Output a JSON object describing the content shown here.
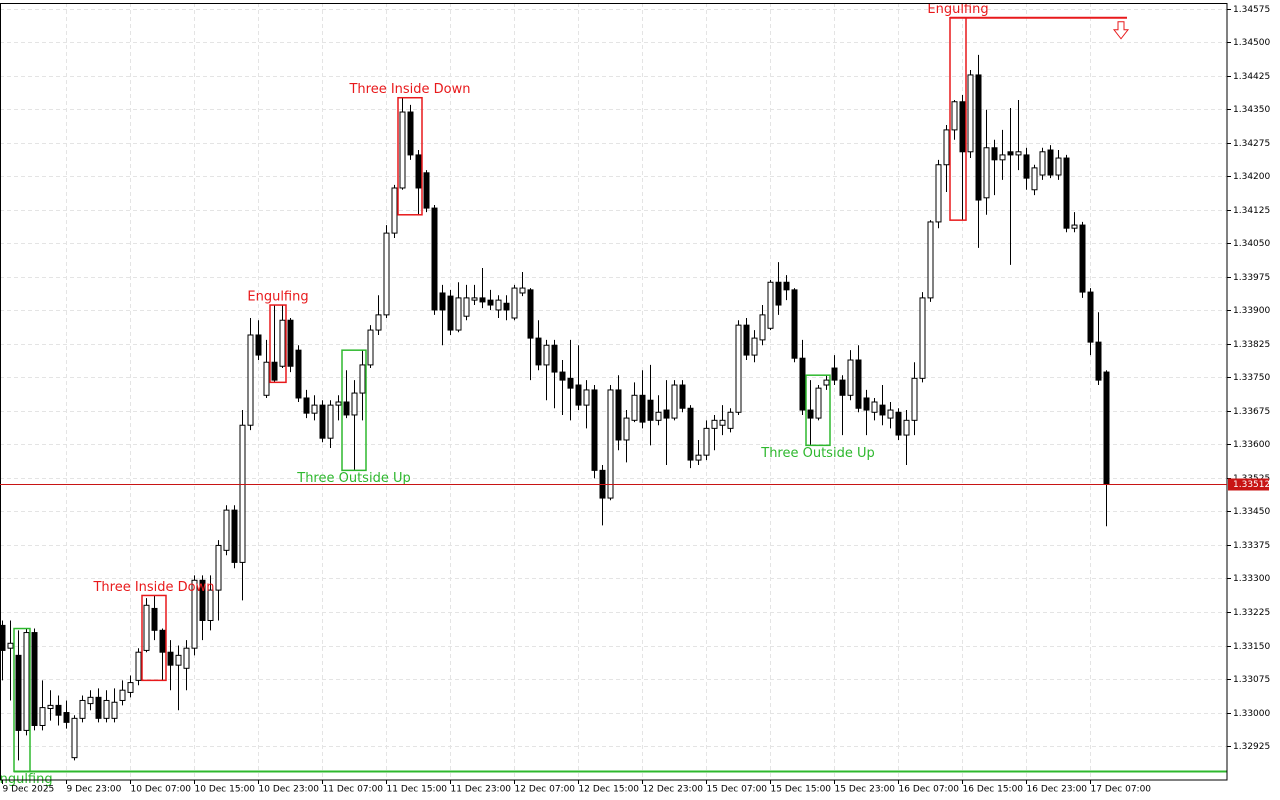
{
  "chart_data": {
    "type": "candlestick",
    "ylim": [
      1.32849,
      1.34588
    ],
    "yticks": [
      1.34575,
      {
        "value": 1.345,
        "label": "1.34500"
      },
      1.34425,
      {
        "value": 1.3435,
        "label": "1.34350"
      },
      1.34275,
      {
        "value": 1.342,
        "label": "1.34200"
      },
      1.34125,
      {
        "value": 1.3405,
        "label": "1.34050"
      },
      1.33975,
      {
        "value": 1.339,
        "label": "1.33900"
      },
      1.33825,
      {
        "value": 1.3375,
        "label": "1.33750"
      },
      1.33675,
      {
        "value": 1.336,
        "label": "1.33600"
      },
      1.33525,
      {
        "value": 1.3345,
        "label": "1.33450"
      },
      1.33375,
      {
        "value": 1.333,
        "label": "1.33300"
      },
      1.33225,
      {
        "value": 1.3315,
        "label": "1.33150"
      },
      1.33075,
      {
        "value": 1.33,
        "label": "1.33000"
      },
      1.32925
    ],
    "grid": true,
    "up_color": "#ffffff",
    "down_color": "#000000",
    "bullish_color": "#2eb82e",
    "bearish_color": "#e8191b",
    "current_price": 1.33512,
    "current_price_color": "#c81414",
    "categories": [
      "9 Dec 2025",
      null,
      null,
      null,
      null,
      null,
      null,
      null,
      "9 Dec 23:00",
      null,
      null,
      null,
      null,
      null,
      null,
      null,
      "10 Dec 07:00",
      null,
      null,
      null,
      null,
      null,
      null,
      null,
      "10 Dec 15:00",
      null,
      null,
      null,
      null,
      null,
      null,
      null,
      "10 Dec 23:00",
      null,
      null,
      null,
      null,
      null,
      null,
      null,
      "11 Dec 07:00",
      null,
      null,
      null,
      null,
      null,
      null,
      null,
      "11 Dec 15:00",
      null,
      null,
      null,
      null,
      null,
      null,
      null,
      "11 Dec 23:00",
      null,
      null,
      null,
      null,
      null,
      null,
      null,
      "12 Dec 07:00",
      null,
      null,
      null,
      null,
      null,
      null,
      null,
      "12 Dec 15:00",
      null,
      null,
      null,
      null,
      null,
      null,
      null,
      "12 Dec 23:00",
      null,
      null,
      null,
      null,
      null,
      null,
      null,
      "15 Dec 07:00",
      null,
      null,
      null,
      null,
      null,
      null,
      null,
      "15 Dec 15:00",
      null,
      null,
      null,
      null,
      null,
      null,
      null,
      "15 Dec 23:00",
      null,
      null,
      null,
      null,
      null,
      null,
      null,
      "16 Dec 07:00",
      null,
      null,
      null,
      null,
      null,
      null,
      null,
      "16 Dec 15:00",
      null,
      null,
      null,
      null,
      null,
      null,
      null,
      "16 Dec 23:00",
      null,
      null,
      null,
      null,
      null,
      null,
      null,
      "17 Dec 07:00",
      null,
      null
    ],
    "open": [
      1.33195,
      1.33144,
      1.33128,
      1.3296,
      1.33179,
      1.32971,
      1.33009,
      1.33016,
      1.33,
      1.32899,
      1.32987,
      1.3302,
      1.33034,
      1.32987,
      1.32987,
      1.33027,
      1.33045,
      1.33072,
      1.33139,
      1.33233,
      1.33184,
      1.33135,
      1.33106,
      1.33099,
      1.33144,
      1.33296,
      1.33206,
      1.33274,
      1.33363,
      1.33453,
      1.33336,
      1.33643,
      1.33845,
      1.3371,
      1.33784,
      1.33775,
      1.33878,
      1.33811,
      1.33704,
      1.3367,
      1.33688,
      1.33614,
      1.33688,
      1.33695,
      1.33666,
      1.33715,
      1.33778,
      1.33856,
      1.3389,
      1.34073,
      1.34174,
      1.34344,
      1.34248,
      1.34208,
      1.34129,
      1.33939,
      1.33932,
      1.33856,
      1.33887,
      1.33923,
      1.33928,
      1.33923,
      1.33901,
      1.33916,
      1.33883,
      1.33939,
      1.33946,
      1.33838,
      1.33778,
      1.33822,
      1.33762,
      1.33748,
      1.33733,
      1.33688,
      1.33722,
      1.33542,
      1.3348,
      1.33722,
      1.3361,
      1.33654,
      1.3371,
      1.33699,
      1.33654,
      1.33677,
      1.33659,
      1.33733,
      1.33681,
      1.33565,
      1.33576,
      1.33636,
      1.33643,
      1.33636,
      1.33672,
      1.33867,
      1.338,
      1.33834,
      1.3386,
      1.33963,
      1.33963,
      1.33946,
      1.33793,
      1.33677,
      1.33659,
      1.33733,
      1.33771,
      1.33744,
      1.3371,
      1.33789,
      1.33704,
      1.33672,
      1.33688,
      1.33659,
      1.33672,
      1.33621,
      1.33654,
      1.33748,
      1.33928,
      1.34098,
      1.34226,
      1.34304,
      1.34367,
      1.34255,
      1.34427,
      1.34152,
      1.34264,
      1.34237,
      1.34255,
      1.34248,
      1.34248,
      1.3417,
      1.34203,
      1.34259,
      1.34203,
      1.34241,
      1.34084,
      1.34091,
      1.33941,
      1.33829,
      1.33762
    ],
    "high": [
      1.33206,
      1.33206,
      1.33184,
      1.33188,
      1.33188,
      1.33072,
      1.3305,
      1.33038,
      1.33027,
      1.32994,
      1.33038,
      1.3305,
      1.33054,
      1.3305,
      1.33054,
      1.33072,
      1.33083,
      1.33144,
      1.33256,
      1.33262,
      1.33188,
      1.33162,
      1.3315,
      1.33162,
      1.33307,
      1.33307,
      1.33307,
      1.33386,
      1.33464,
      1.33464,
      1.33677,
      1.33883,
      1.33878,
      1.33834,
      1.33912,
      1.33912,
      1.33883,
      1.33822,
      1.33722,
      1.3371,
      1.33699,
      1.33699,
      1.3371,
      1.33766,
      1.33744,
      1.33811,
      1.33867,
      1.33934,
      1.34091,
      1.34181,
      1.34376,
      1.3436,
      1.34259,
      1.34214,
      1.34136,
      1.33957,
      1.33946,
      1.33963,
      1.33957,
      1.33957,
      1.33995,
      1.33946,
      1.33934,
      1.33934,
      1.33957,
      1.33986,
      1.3395,
      1.33878,
      1.33834,
      1.33834,
      1.33789,
      1.33834,
      1.33822,
      1.33744,
      1.33733,
      1.33554,
      1.33733,
      1.33755,
      1.33677,
      1.33739,
      1.33766,
      1.33778,
      1.3371,
      1.33744,
      1.33744,
      1.33744,
      1.33688,
      1.3361,
      1.33654,
      1.33666,
      1.33688,
      1.33681,
      1.33878,
      1.33883,
      1.33856,
      1.33912,
      1.33968,
      1.34008,
      1.33979,
      1.3395,
      1.33834,
      1.33744,
      1.33733,
      1.33755,
      1.338,
      1.33755,
      1.33811,
      1.33822,
      1.33722,
      1.33704,
      1.33733,
      1.33695,
      1.33681,
      1.33677,
      1.33784,
      1.33941,
      1.34102,
      1.34237,
      1.34315,
      1.34371,
      1.34382,
      1.34438,
      1.34472,
      1.34349,
      1.34282,
      1.34304,
      1.34353,
      1.34371,
      1.34264,
      1.34226,
      1.34264,
      1.3427,
      1.34259,
      1.34248,
      1.3412,
      1.34098,
      1.3395,
      1.33896,
      1.33766
    ],
    "low": [
      1.33072,
      1.33027,
      1.32893,
      1.32949,
      1.3296,
      1.3296,
      1.32982,
      1.32971,
      1.32964,
      1.32893,
      1.32978,
      1.33005,
      1.32978,
      1.32978,
      1.32978,
      1.33016,
      1.33034,
      1.33061,
      1.33135,
      1.33162,
      1.33072,
      1.3305,
      1.33005,
      1.3305,
      1.33128,
      1.33162,
      1.33184,
      1.33206,
      1.33352,
      1.33323,
      1.33251,
      1.33632,
      1.33789,
      1.33704,
      1.33739,
      1.33771,
      1.33762,
      1.33695,
      1.33659,
      1.33654,
      1.33605,
      1.33592,
      1.33654,
      1.33659,
      1.33542,
      1.33654,
      1.33771,
      1.33845,
      1.33883,
      1.34062,
      1.3417,
      1.34237,
      1.34114,
      1.3412,
      1.3389,
      1.33822,
      1.33845,
      1.33851,
      1.33878,
      1.33912,
      1.33905,
      1.33901,
      1.33883,
      1.33878,
      1.33878,
      1.33932,
      1.33744,
      1.33766,
      1.33699,
      1.33681,
      1.33666,
      1.33654,
      1.33677,
      1.33636,
      1.33524,
      1.33419,
      1.33475,
      1.33587,
      1.3356,
      1.3365,
      1.33636,
      1.33598,
      1.33643,
      1.33554,
      1.33654,
      1.33672,
      1.33547,
      1.33554,
      1.33565,
      1.33587,
      1.33621,
      1.33627,
      1.33666,
      1.33789,
      1.33784,
      1.33822,
      1.33856,
      1.3389,
      1.33923,
      1.33784,
      1.33666,
      1.33598,
      1.33654,
      1.33722,
      1.33733,
      1.33621,
      1.33699,
      1.33672,
      1.33621,
      1.33654,
      1.33643,
      1.33636,
      1.3361,
      1.33554,
      1.33621,
      1.33739,
      1.33919,
      1.34084,
      1.34165,
      1.34282,
      1.34102,
      1.34241,
      1.3404,
      1.34114,
      1.34158,
      1.34192,
      1.34002,
      1.34214,
      1.3417,
      1.34158,
      1.34192,
      1.34196,
      1.34192,
      1.34075,
      1.34075,
      1.33928,
      1.338,
      1.33733,
      1.33417
    ],
    "close": [
      1.33139,
      1.33155,
      1.3296,
      1.33179,
      1.32971,
      1.33011,
      1.33016,
      1.32994,
      1.32978,
      1.32987,
      1.33027,
      1.33034,
      1.32987,
      1.33027,
      1.33023,
      1.3305,
      1.33067,
      1.33135,
      1.3324,
      1.33184,
      1.33135,
      1.33106,
      1.33128,
      1.33144,
      1.33296,
      1.33206,
      1.33274,
      1.33374,
      1.33453,
      1.33336,
      1.33643,
      1.33845,
      1.338,
      1.33784,
      1.33744,
      1.33878,
      1.33775,
      1.33704,
      1.3367,
      1.33688,
      1.33614,
      1.33688,
      1.33695,
      1.33666,
      1.33715,
      1.33778,
      1.33856,
      1.3389,
      1.34073,
      1.34174,
      1.34344,
      1.34248,
      1.34174,
      1.34129,
      1.33901,
      1.33901,
      1.33856,
      1.33928,
      1.33928,
      1.33928,
      1.33919,
      1.33912,
      1.33923,
      1.33901,
      1.3395,
      1.3395,
      1.33838,
      1.33778,
      1.33822,
      1.33762,
      1.33744,
      1.33726,
      1.33688,
      1.33722,
      1.33542,
      1.3348,
      1.33722,
      1.3361,
      1.33659,
      1.3371,
      1.3365,
      1.33654,
      1.33672,
      1.33659,
      1.33733,
      1.33681,
      1.33565,
      1.33576,
      1.33636,
      1.33654,
      1.33654,
      1.33672,
      1.33867,
      1.338,
      1.33838,
      1.3389,
      1.33963,
      1.33912,
      1.33946,
      1.33793,
      1.33677,
      1.33659,
      1.33726,
      1.33744,
      1.33744,
      1.3371,
      1.33789,
      1.33681,
      1.33677,
      1.33695,
      1.33666,
      1.33677,
      1.33621,
      1.33654,
      1.33748,
      1.33928,
      1.34098,
      1.34226,
      1.34304,
      1.34367,
      1.34255,
      1.34427,
      1.34147,
      1.34264,
      1.34237,
      1.34248,
      1.34248,
      1.34255,
      1.34196,
      1.34219,
      1.34255,
      1.34203,
      1.34241,
      1.34084,
      1.34091,
      1.33941,
      1.33829,
      1.33744,
      1.33512
    ],
    "patterns": [
      {
        "label": "Engulfing",
        "bias": "bullish",
        "start": 2,
        "end": 3,
        "level": 1.32868
      },
      {
        "label": "Three Inside Down",
        "bias": "bearish",
        "start": 18,
        "end": 20
      },
      {
        "label": "Engulfing",
        "bias": "bearish",
        "start": 34,
        "end": 35
      },
      {
        "label": "Three Outside Up",
        "bias": "bullish",
        "start": 43,
        "end": 45
      },
      {
        "label": "Three Inside Down",
        "bias": "bearish",
        "start": 50,
        "end": 52
      },
      {
        "label": "Three Outside Up",
        "bias": "bullish",
        "start": 101,
        "end": 103
      },
      {
        "label": "Engulfing",
        "bias": "bearish",
        "start": 119,
        "end": 120,
        "level": 1.34555
      }
    ]
  }
}
